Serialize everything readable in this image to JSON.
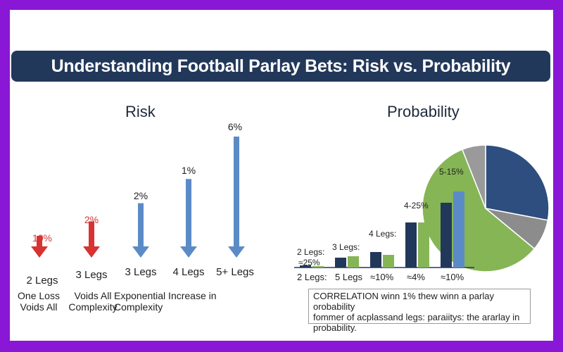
{
  "title": "Understanding Football Parlay Bets: Risk vs. Probability",
  "risk": {
    "heading": "Risk",
    "columns": [
      {
        "pct": "10%",
        "leg": "2 Legs",
        "color": "#d83232",
        "arrow_scale": 0.18
      },
      {
        "pct": "2%",
        "leg": "3 Legs",
        "color": "#d83232",
        "arrow_scale": 0.3
      },
      {
        "pct": "2%",
        "leg": "3 Legs",
        "color": "#5b8bc6",
        "arrow_scale": 0.45
      },
      {
        "pct": "1%",
        "leg": "4 Legs",
        "color": "#5b8bc6",
        "arrow_scale": 0.65
      },
      {
        "pct": "6%",
        "leg": "5+ Legs",
        "color": "#5b8bc6",
        "arrow_scale": 1.0
      }
    ],
    "descriptions": [
      {
        "line1": "One Loss",
        "line2": "Voids All"
      },
      {
        "line1": "Voids All",
        "line2": "Complexity"
      },
      {
        "line1": "Exponential Increase in",
        "line2": "Complexity"
      }
    ]
  },
  "probability": {
    "heading": "Probability",
    "bar_labels": [
      "2 Legs:",
      "≈25%",
      "3 Legs:",
      "4 Legs:",
      "4-25%",
      "5-15%"
    ],
    "x_labels": [
      "2 Legs:",
      "5 Legs",
      "≈10%",
      "≈4%",
      "≈10%"
    ],
    "correlation_text": {
      "line1": "CORRELATION winn 1%  thew winn a parlay orobability",
      "line2": "fommer of acplassand legs: paraiitys: the ararlay in",
      "line3": "probability."
    }
  },
  "chart_data": [
    {
      "type": "bar",
      "title": "Risk",
      "categories": [
        "2 Legs",
        "3 Legs",
        "3 Legs",
        "4 Legs",
        "5+ Legs"
      ],
      "values": [
        10,
        2,
        2,
        1,
        6
      ],
      "value_labels": [
        "10%",
        "2%",
        "2%",
        "1%",
        "6%"
      ],
      "colors": [
        "#d83232",
        "#d83232",
        "#5b8bc6",
        "#5b8bc6",
        "#5b8bc6"
      ]
    },
    {
      "type": "bar",
      "title": "Probability",
      "categories": [
        "2 Legs:",
        "5 Legs",
        "≈10%",
        "≈4%",
        "≈10%"
      ],
      "series": [
        {
          "color": "#22385a",
          "values": [
            3,
            28,
            30,
            52,
            70
          ]
        },
        {
          "color": "#86b556",
          "values": [
            2,
            30,
            0,
            0,
            0
          ]
        }
      ],
      "series_extra": [
        {
          "color": "#86b556",
          "values": [
            0,
            0,
            26,
            50,
            0
          ]
        },
        {
          "color": "#5b8bc6",
          "values": [
            0,
            0,
            0,
            0,
            80
          ]
        }
      ]
    },
    {
      "type": "pie",
      "title": "Probability",
      "slices": [
        {
          "value": 28,
          "color": "#2d4e7e"
        },
        {
          "value": 8,
          "color": "#8c8c8c"
        },
        {
          "value": 58,
          "color": "#86b556"
        },
        {
          "value": 6,
          "color": "#9a9a9a"
        }
      ]
    }
  ]
}
